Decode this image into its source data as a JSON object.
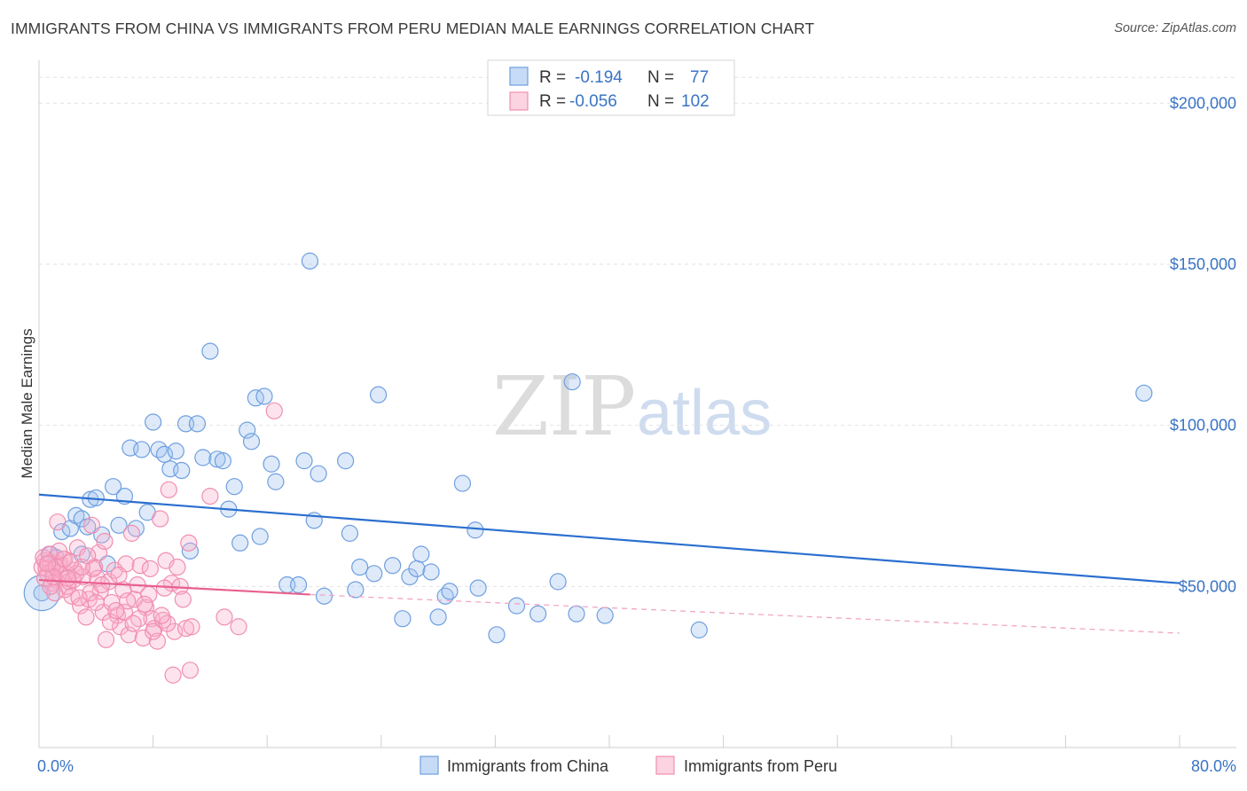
{
  "header": {
    "title": "IMMIGRANTS FROM CHINA VS IMMIGRANTS FROM PERU MEDIAN MALE EARNINGS CORRELATION CHART",
    "source": "Source: ZipAtlas.com"
  },
  "watermark": {
    "zip": "ZIP",
    "atlas": "atlas"
  },
  "legend": {
    "china": {
      "r_label": "R =",
      "r_value": "-0.194",
      "n_label": "N =",
      "n_value": "77",
      "color": "#6f9fe0"
    },
    "peru": {
      "r_label": "R =",
      "r_value": "-0.056",
      "n_label": "N =",
      "n_value": "102",
      "color": "#f08fb0"
    }
  },
  "bottom_legend": {
    "china_label": "Immigrants from China",
    "peru_label": "Immigrants from Peru"
  },
  "chart_data": {
    "type": "scatter",
    "title": "IMMIGRANTS FROM CHINA VS IMMIGRANTS FROM PERU MEDIAN MALE EARNINGS CORRELATION CHART",
    "xlabel": "",
    "ylabel": "Median Male Earnings",
    "xlim": [
      0,
      80
    ],
    "ylim": [
      0,
      210000
    ],
    "x_tick_labels": {
      "min": "0.0%",
      "max": "80.0%"
    },
    "y_ticks": [
      {
        "value": 50000,
        "label": "$50,000"
      },
      {
        "value": 100000,
        "label": "$100,000"
      },
      {
        "value": 150000,
        "label": "$150,000"
      },
      {
        "value": 200000,
        "label": "$200,000"
      }
    ],
    "series": [
      {
        "name": "Immigrants from China",
        "color": "#6f9fe0",
        "trend": {
          "x0": 0,
          "y0": 78500,
          "x1": 80,
          "y1": 51000,
          "dashed_to": null
        },
        "points": [
          [
            0.2,
            48000
          ],
          [
            0.8,
            60000
          ],
          [
            1.2,
            59000
          ],
          [
            1.6,
            67000
          ],
          [
            2.2,
            68000
          ],
          [
            2.6,
            72000
          ],
          [
            3.0,
            71000
          ],
          [
            3.4,
            68500
          ],
          [
            3.6,
            77000
          ],
          [
            4.0,
            77500
          ],
          [
            4.4,
            66000
          ],
          [
            4.8,
            57000
          ],
          [
            5.2,
            81000
          ],
          [
            5.6,
            69000
          ],
          [
            6.0,
            78000
          ],
          [
            6.4,
            93000
          ],
          [
            6.8,
            68000
          ],
          [
            7.2,
            92500
          ],
          [
            7.6,
            73000
          ],
          [
            8.0,
            101000
          ],
          [
            8.4,
            92500
          ],
          [
            8.8,
            91000
          ],
          [
            9.2,
            86500
          ],
          [
            9.6,
            92000
          ],
          [
            10.0,
            86000
          ],
          [
            10.3,
            100500
          ],
          [
            10.6,
            61000
          ],
          [
            11.1,
            100500
          ],
          [
            11.5,
            90000
          ],
          [
            12.0,
            123000
          ],
          [
            12.5,
            89500
          ],
          [
            12.9,
            89000
          ],
          [
            13.3,
            74000
          ],
          [
            13.7,
            81000
          ],
          [
            14.1,
            63500
          ],
          [
            14.6,
            98500
          ],
          [
            14.9,
            95000
          ],
          [
            15.2,
            108500
          ],
          [
            15.5,
            65500
          ],
          [
            15.8,
            109000
          ],
          [
            16.3,
            88000
          ],
          [
            16.6,
            82500
          ],
          [
            17.4,
            50500
          ],
          [
            18.2,
            50500
          ],
          [
            18.6,
            89000
          ],
          [
            19.0,
            151000
          ],
          [
            19.3,
            70500
          ],
          [
            19.6,
            85000
          ],
          [
            20.0,
            47000
          ],
          [
            21.5,
            89000
          ],
          [
            21.8,
            66500
          ],
          [
            22.2,
            49000
          ],
          [
            22.5,
            56000
          ],
          [
            23.5,
            54000
          ],
          [
            23.8,
            109500
          ],
          [
            24.8,
            56500
          ],
          [
            25.5,
            40000
          ],
          [
            26.0,
            53000
          ],
          [
            26.5,
            55500
          ],
          [
            26.8,
            60000
          ],
          [
            27.5,
            54500
          ],
          [
            28.0,
            40500
          ],
          [
            28.5,
            47000
          ],
          [
            28.8,
            48500
          ],
          [
            29.7,
            82000
          ],
          [
            30.6,
            67500
          ],
          [
            30.8,
            49500
          ],
          [
            32.1,
            35000
          ],
          [
            33.5,
            44000
          ],
          [
            35.0,
            41500
          ],
          [
            36.4,
            51500
          ],
          [
            37.4,
            113500
          ],
          [
            37.7,
            41500
          ],
          [
            39.7,
            41000
          ],
          [
            46.3,
            36500
          ],
          [
            77.5,
            110000
          ],
          [
            3.0,
            60000
          ]
        ]
      },
      {
        "name": "Immigrants from Peru",
        "color": "#f08fb0",
        "trend": {
          "x0": 0,
          "y0": 52000,
          "x1": 19,
          "y1": 47500,
          "dashed_to": {
            "x": 80,
            "y": 35500
          }
        },
        "points": [
          [
            0.2,
            56000
          ],
          [
            0.4,
            58000
          ],
          [
            0.6,
            54000
          ],
          [
            0.8,
            57500
          ],
          [
            1.0,
            55000
          ],
          [
            1.2,
            52000
          ],
          [
            1.4,
            56500
          ],
          [
            1.6,
            53500
          ],
          [
            1.8,
            49000
          ],
          [
            2.0,
            50000
          ],
          [
            0.3,
            59000
          ],
          [
            0.5,
            55500
          ],
          [
            0.7,
            60000
          ],
          [
            0.9,
            51000
          ],
          [
            1.1,
            48000
          ],
          [
            1.3,
            70000
          ],
          [
            1.5,
            57000
          ],
          [
            1.7,
            58500
          ],
          [
            1.9,
            54000
          ],
          [
            2.1,
            51500
          ],
          [
            2.3,
            47000
          ],
          [
            2.5,
            55000
          ],
          [
            2.7,
            62000
          ],
          [
            2.9,
            44000
          ],
          [
            3.1,
            53000
          ],
          [
            3.3,
            40500
          ],
          [
            3.5,
            46000
          ],
          [
            3.7,
            69000
          ],
          [
            3.9,
            56000
          ],
          [
            4.1,
            52500
          ],
          [
            4.3,
            48500
          ],
          [
            4.5,
            42000
          ],
          [
            4.7,
            33500
          ],
          [
            4.9,
            51500
          ],
          [
            5.1,
            45000
          ],
          [
            5.3,
            55000
          ],
          [
            5.5,
            41000
          ],
          [
            5.7,
            37500
          ],
          [
            5.9,
            49000
          ],
          [
            6.1,
            57000
          ],
          [
            6.3,
            35000
          ],
          [
            6.5,
            66500
          ],
          [
            6.7,
            46000
          ],
          [
            6.9,
            50500
          ],
          [
            7.1,
            56500
          ],
          [
            7.3,
            34000
          ],
          [
            7.5,
            43500
          ],
          [
            7.7,
            47500
          ],
          [
            7.9,
            40000
          ],
          [
            8.1,
            37000
          ],
          [
            8.3,
            33000
          ],
          [
            8.5,
            71000
          ],
          [
            8.7,
            39500
          ],
          [
            8.9,
            58000
          ],
          [
            9.1,
            80000
          ],
          [
            9.3,
            51000
          ],
          [
            9.5,
            36000
          ],
          [
            9.7,
            56000
          ],
          [
            9.9,
            50000
          ],
          [
            10.1,
            46000
          ],
          [
            10.3,
            37000
          ],
          [
            10.5,
            63500
          ],
          [
            10.7,
            37500
          ],
          [
            1.2,
            56000
          ],
          [
            2.4,
            52000
          ],
          [
            3.6,
            48000
          ],
          [
            4.0,
            45000
          ],
          [
            5.0,
            39000
          ],
          [
            6.0,
            42000
          ],
          [
            7.0,
            40000
          ],
          [
            8.0,
            36000
          ],
          [
            9.0,
            38500
          ],
          [
            3.8,
            55500
          ],
          [
            2.6,
            54000
          ],
          [
            1.8,
            58500
          ],
          [
            0.8,
            50000
          ],
          [
            4.4,
            50500
          ],
          [
            5.6,
            53500
          ],
          [
            6.2,
            45500
          ],
          [
            7.4,
            44500
          ],
          [
            8.6,
            41000
          ],
          [
            9.4,
            22500
          ],
          [
            10.6,
            24000
          ],
          [
            12.0,
            78000
          ],
          [
            13.0,
            40500
          ],
          [
            14.0,
            37500
          ],
          [
            16.5,
            104500
          ],
          [
            4.2,
            60500
          ],
          [
            2.0,
            52500
          ],
          [
            3.0,
            56000
          ],
          [
            1.0,
            53000
          ],
          [
            0.6,
            57000
          ],
          [
            2.8,
            46500
          ],
          [
            3.4,
            59500
          ],
          [
            4.6,
            64000
          ],
          [
            5.4,
            42500
          ],
          [
            6.6,
            38500
          ],
          [
            7.8,
            55500
          ],
          [
            8.8,
            49500
          ],
          [
            1.4,
            61000
          ],
          [
            2.2,
            57500
          ],
          [
            0.4,
            52500
          ]
        ]
      }
    ]
  }
}
